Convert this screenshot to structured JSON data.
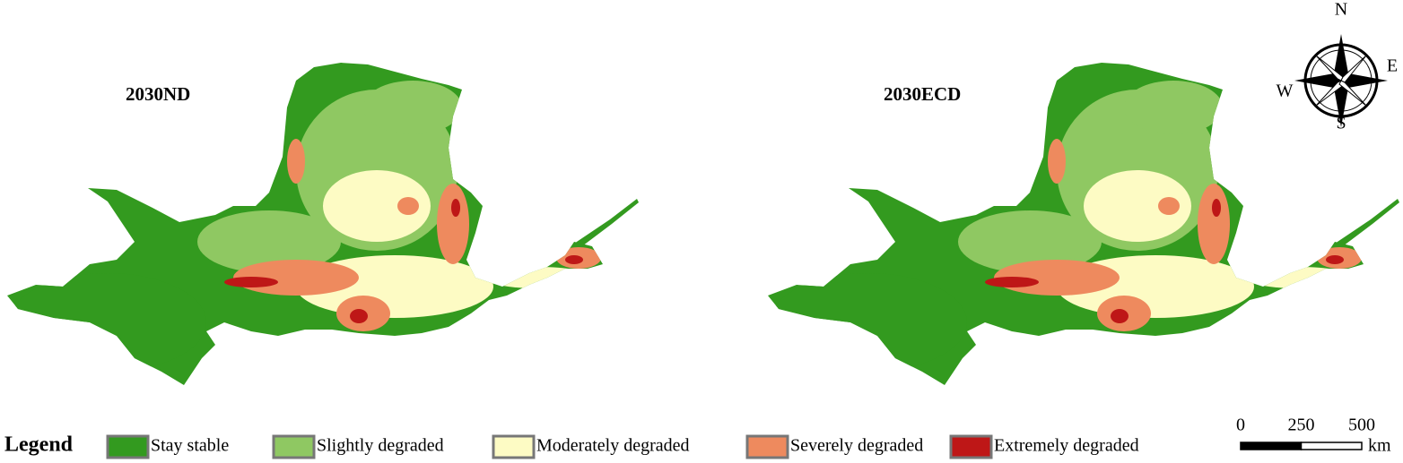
{
  "maps": [
    {
      "label": "2030ND"
    },
    {
      "label": "2030ECD"
    }
  ],
  "compass": {
    "north": "N",
    "south": "S",
    "west": "W",
    "east": "E"
  },
  "legend": {
    "title": "Legend",
    "items": [
      {
        "label": "Stay stable",
        "color": "#339a1f"
      },
      {
        "label": "Slightly degraded",
        "color": "#8fc862"
      },
      {
        "label": "Moderately degraded",
        "color": "#fdfbc4"
      },
      {
        "label": "Severely degraded",
        "color": "#ee8a5e"
      },
      {
        "label": "Extremely degraded",
        "color": "#be1717"
      }
    ]
  },
  "scale_bar": {
    "ticks": [
      0,
      250,
      500
    ],
    "unit": "km"
  }
}
